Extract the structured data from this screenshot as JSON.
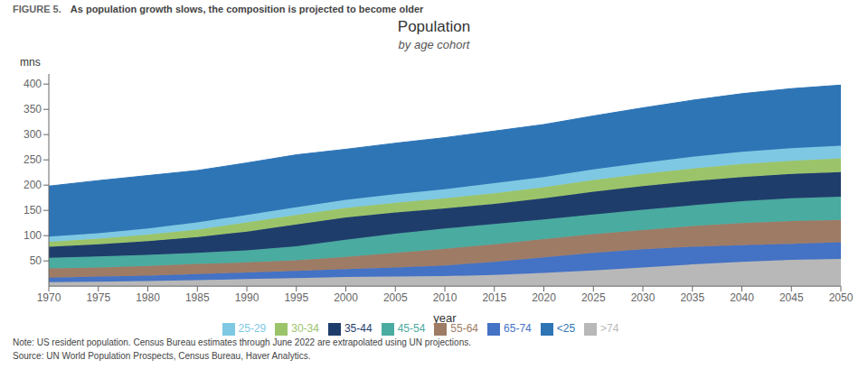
{
  "chart_data": {
    "type": "area",
    "stacked": true,
    "title": "Population",
    "subtitle": "by age cohort",
    "x_label": "year",
    "y_label": "mns",
    "annotations": [
      "FIGURE 5.",
      "As population growth slows, the composition is projected to become older",
      "Note: US resident population. Census Bureau estimates through June 2022 are extrapolated using UN projections.",
      "Source: UN World Population Prospects, Census Bureau, Haver Analytics."
    ],
    "x": [
      1970,
      1975,
      1980,
      1985,
      1990,
      1995,
      2000,
      2005,
      2010,
      2015,
      2020,
      2025,
      2030,
      2035,
      2040,
      2045,
      2050
    ],
    "series": [
      {
        "name": ">74",
        "color": "#b8b8b8",
        "values": [
          8,
          9,
          10,
          12,
          14,
          16,
          18,
          19,
          20,
          22,
          26,
          31,
          37,
          43,
          48,
          52,
          54
        ]
      },
      {
        "name": "65-74",
        "color": "#4472c4",
        "values": [
          9,
          10,
          11,
          12,
          13,
          14,
          16,
          18,
          21,
          26,
          31,
          35,
          36,
          35,
          33,
          32,
          33
        ]
      },
      {
        "name": "55-64",
        "color": "#9e7b65",
        "values": [
          18,
          18,
          19,
          20,
          20,
          21,
          24,
          29,
          33,
          35,
          36,
          37,
          38,
          41,
          44,
          45,
          44
        ]
      },
      {
        "name": "45-54",
        "color": "#4aaba0",
        "values": [
          21,
          22,
          22,
          22,
          24,
          28,
          34,
          38,
          40,
          40,
          39,
          39,
          40,
          41,
          43,
          45,
          46
        ]
      },
      {
        "name": "35-44",
        "color": "#1f3d6b",
        "values": [
          22,
          24,
          27,
          31,
          37,
          43,
          44,
          42,
          40,
          40,
          42,
          45,
          47,
          48,
          48,
          48,
          49
        ]
      },
      {
        "name": "30-34",
        "color": "#9bc46a",
        "values": [
          10,
          11,
          13,
          15,
          18,
          19,
          19,
          19,
          20,
          21,
          22,
          23,
          24,
          25,
          26,
          26,
          27
        ]
      },
      {
        "name": "25-29",
        "color": "#7ec8e3",
        "values": [
          10,
          11,
          12,
          14,
          15,
          15,
          16,
          17,
          18,
          20,
          20,
          21,
          22,
          23,
          24,
          25,
          25
        ]
      },
      {
        "name": "<25",
        "color": "#2e75b6",
        "values": [
          100,
          104,
          105,
          103,
          103,
          104,
          100,
          101,
          102,
          103,
          104,
          106,
          109,
          112,
          115,
          118,
          120
        ]
      }
    ],
    "xlim": [
      1970,
      2050
    ],
    "xticks": [
      1970,
      1975,
      1980,
      1985,
      1990,
      1995,
      2000,
      2005,
      2010,
      2015,
      2020,
      2025,
      2030,
      2035,
      2040,
      2045,
      2050
    ],
    "ylim": [
      0,
      420
    ],
    "yticks": [
      50,
      100,
      150,
      200,
      250,
      300,
      350,
      400
    ],
    "grid": false,
    "legend": "bottom"
  }
}
